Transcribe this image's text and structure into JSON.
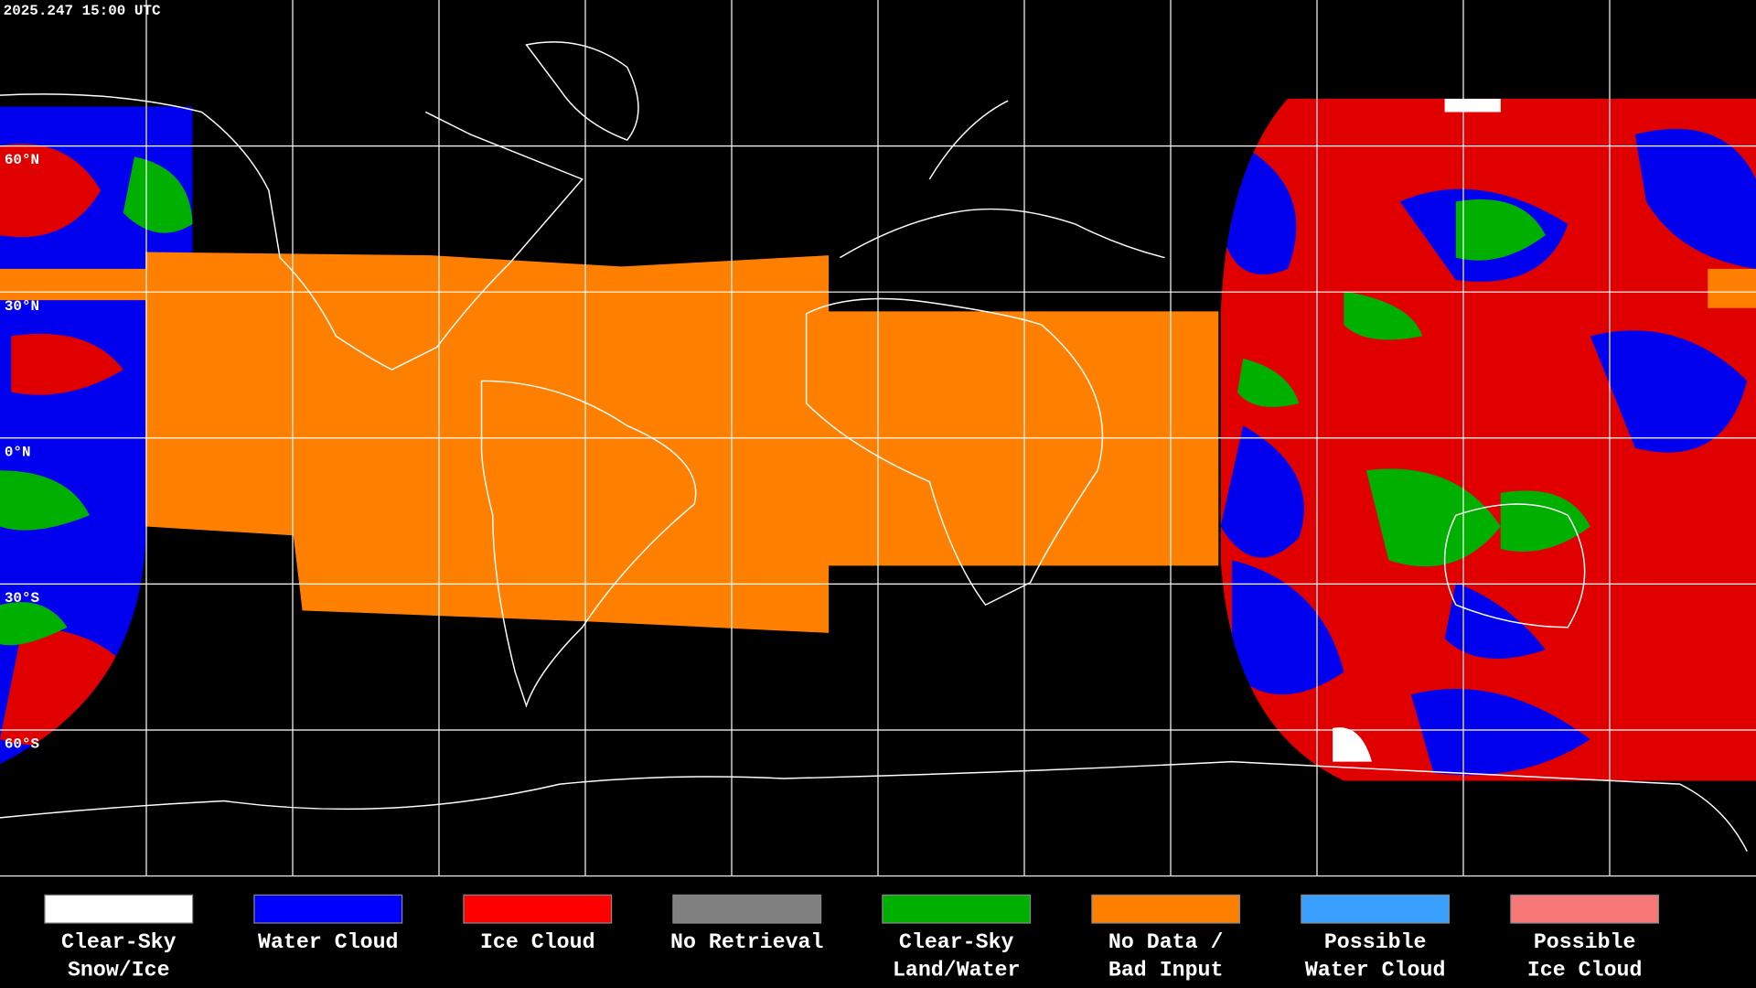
{
  "timestamp": "2025.247 15:00 UTC",
  "latitude_labels": [
    "60°N",
    "30°N",
    "0°N",
    "30°S",
    "60°S"
  ],
  "legend": [
    {
      "lines": [
        "Clear-Sky",
        "Snow/Ice"
      ],
      "color": "#ffffff"
    },
    {
      "lines": [
        "Water Cloud"
      ],
      "color": "#0000ff"
    },
    {
      "lines": [
        "Ice Cloud"
      ],
      "color": "#ff0000"
    },
    {
      "lines": [
        "No Retrieval"
      ],
      "color": "#808080"
    },
    {
      "lines": [
        "Clear-Sky",
        "Land/Water"
      ],
      "color": "#00b000"
    },
    {
      "lines": [
        "No Data /",
        "Bad Input"
      ],
      "color": "#ff8000"
    },
    {
      "lines": [
        "Possible",
        "Water Cloud"
      ],
      "color": "#3aa0ff"
    },
    {
      "lines": [
        "Possible",
        "Ice Cloud"
      ],
      "color": "#f87878"
    }
  ]
}
